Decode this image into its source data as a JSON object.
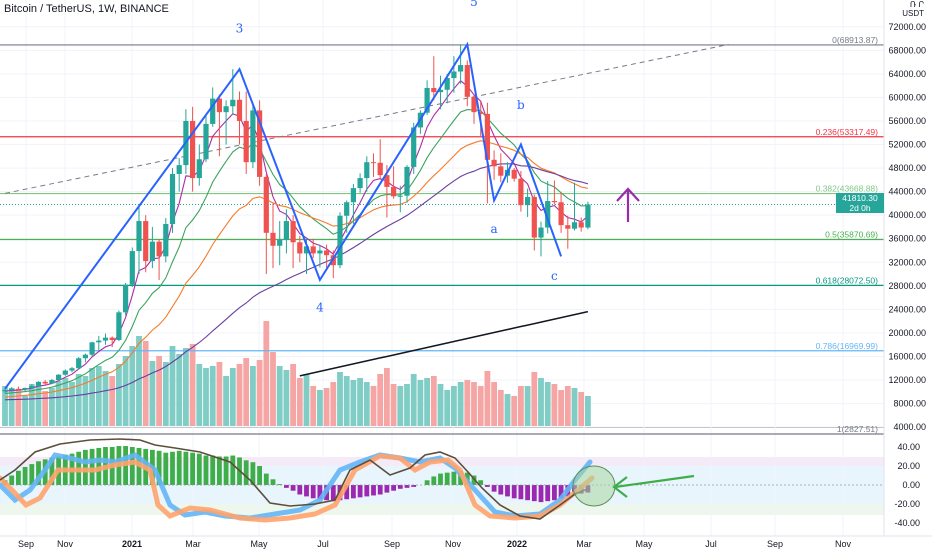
{
  "header": {
    "title": "Bitcoin / TetherUS, 1W, BINANCE"
  },
  "price_axis": {
    "unit_top": "Ռ Ր",
    "unit": "USDT"
  },
  "last_price": {
    "value": "41810.30",
    "countdown": "2d 0h"
  },
  "colors": {
    "bull": "#26a69a",
    "bear": "#ef5350",
    "volume_bull": "#7fcdc5",
    "volume_bear": "#f5a6a4",
    "wave_line": "#2962ff",
    "arrow": "#9c27b0",
    "ma_short": "#b02aa6",
    "ma_mid": "#3da35d",
    "ma_long": "#f57c2b",
    "ma_longer": "#6a3ea1",
    "ma_200": "#131722",
    "fib_0": "#787b86",
    "fib_0236": "#f23645",
    "fib_0382": "#81c784",
    "fib_05": "#4caf50",
    "fib_0618": "#089981",
    "fib_0786": "#64b5f6",
    "fib_1": "#787b86",
    "osc_blue": "#64b5f6",
    "osc_orange": "#ffa36c",
    "osc_line": "#5d4e3c",
    "hist_green": "#3fae4a",
    "hist_purple": "#9c27b0",
    "circle_fill": "#a8d5a0",
    "circle_arrow": "#3fae4a"
  },
  "chart_data": {
    "type": "candlestick",
    "price_axis": {
      "ticks": [
        "72000.00",
        "68000.00",
        "64000.00",
        "60000.00",
        "56000.00",
        "52000.00",
        "48000.00",
        "44000.00",
        "40000.00",
        "36000.00",
        "32000.00",
        "28000.00",
        "24000.00",
        "20000.00",
        "16000.00",
        "12000.00",
        "8000.00",
        "4000.00"
      ],
      "range": [
        3000,
        74000
      ]
    },
    "time_axis": {
      "ticks": [
        "Sep",
        "Nov",
        "2021",
        "Mar",
        "May",
        "Jul",
        "Sep",
        "Nov",
        "2022",
        "Mar",
        "May",
        "Jul",
        "Sep",
        "Nov"
      ],
      "bold": [
        "2021",
        "2022"
      ]
    },
    "fib_levels": [
      {
        "label": "0(68913.87)",
        "price": 68913.87,
        "color_key": "fib_0"
      },
      {
        "label": "0.236(53317.49)",
        "price": 53317.49,
        "color_key": "fib_0236"
      },
      {
        "label": "0.382(43668.88)",
        "price": 43668.88,
        "color_key": "fib_0382"
      },
      {
        "label": "0.5(35870.69)",
        "price": 35870.69,
        "color_key": "fib_05"
      },
      {
        "label": "0.618(28072.50)",
        "price": 28072.5,
        "color_key": "fib_0618"
      },
      {
        "label": "0.786(16969.99)",
        "price": 16969.99,
        "color_key": "fib_0786"
      },
      {
        "label": "1(2827.51)",
        "price": 2827.51,
        "color_key": "fib_1"
      }
    ],
    "wave_labels": [
      {
        "text": "3",
        "week": 35,
        "price": 71000
      },
      {
        "text": "5",
        "week": 70,
        "price": 75500
      },
      {
        "text": "4",
        "week": 47,
        "price": 23600
      },
      {
        "text": "b",
        "week": 77,
        "price": 58000
      },
      {
        "text": "a",
        "week": 73,
        "price": 37000
      },
      {
        "text": "c",
        "week": 82,
        "price": 29000
      }
    ],
    "wave_path": [
      {
        "week": 0,
        "price": 10500
      },
      {
        "week": 35,
        "price": 64800
      },
      {
        "week": 47,
        "price": 29000
      },
      {
        "week": 69,
        "price": 69000
      },
      {
        "week": 73,
        "price": 42500
      },
      {
        "week": 77,
        "price": 52000
      },
      {
        "week": 83,
        "price": 33000
      }
    ],
    "trendline": {
      "from": {
        "week": 0,
        "price": 43700
      },
      "to": {
        "week": 108,
        "price": 69000
      }
    },
    "weeks": [
      {
        "o": 10100,
        "h": 10500,
        "l": 9800,
        "c": 10300,
        "v": 40
      },
      {
        "o": 10300,
        "h": 10800,
        "l": 10000,
        "c": 10500,
        "v": 38
      },
      {
        "o": 10500,
        "h": 10900,
        "l": 10200,
        "c": 10400,
        "v": 36
      },
      {
        "o": 10400,
        "h": 10700,
        "l": 10100,
        "c": 10650,
        "v": 30
      },
      {
        "o": 10650,
        "h": 11300,
        "l": 10500,
        "c": 11000,
        "v": 42
      },
      {
        "o": 11000,
        "h": 11800,
        "l": 10800,
        "c": 11700,
        "v": 40
      },
      {
        "o": 11700,
        "h": 12000,
        "l": 11200,
        "c": 11400,
        "v": 35
      },
      {
        "o": 11400,
        "h": 12200,
        "l": 11300,
        "c": 12000,
        "v": 38
      },
      {
        "o": 12000,
        "h": 13000,
        "l": 11900,
        "c": 12900,
        "v": 45
      },
      {
        "o": 12900,
        "h": 13800,
        "l": 12700,
        "c": 13600,
        "v": 48
      },
      {
        "o": 13600,
        "h": 14200,
        "l": 13300,
        "c": 14000,
        "v": 44
      },
      {
        "o": 14000,
        "h": 15900,
        "l": 13800,
        "c": 15700,
        "v": 52
      },
      {
        "o": 15700,
        "h": 16500,
        "l": 15000,
        "c": 16300,
        "v": 50
      },
      {
        "o": 16300,
        "h": 18500,
        "l": 16000,
        "c": 18400,
        "v": 58
      },
      {
        "o": 18400,
        "h": 19500,
        "l": 17000,
        "c": 18700,
        "v": 60
      },
      {
        "o": 18700,
        "h": 19900,
        "l": 18000,
        "c": 19200,
        "v": 55
      },
      {
        "o": 19200,
        "h": 19400,
        "l": 17600,
        "c": 18800,
        "v": 50
      },
      {
        "o": 18800,
        "h": 23800,
        "l": 18600,
        "c": 23500,
        "v": 62
      },
      {
        "o": 23500,
        "h": 28500,
        "l": 23000,
        "c": 28200,
        "v": 70
      },
      {
        "o": 28200,
        "h": 34500,
        "l": 27800,
        "c": 33900,
        "v": 80
      },
      {
        "o": 33900,
        "h": 41900,
        "l": 30000,
        "c": 39000,
        "v": 90
      },
      {
        "o": 39000,
        "h": 40000,
        "l": 30300,
        "c": 32200,
        "v": 85
      },
      {
        "o": 32200,
        "h": 38000,
        "l": 31000,
        "c": 35500,
        "v": 65
      },
      {
        "o": 35500,
        "h": 35800,
        "l": 29000,
        "c": 33000,
        "v": 70
      },
      {
        "o": 33000,
        "h": 39500,
        "l": 32000,
        "c": 38500,
        "v": 64
      },
      {
        "o": 38500,
        "h": 48000,
        "l": 37000,
        "c": 47000,
        "v": 80
      },
      {
        "o": 47000,
        "h": 49700,
        "l": 44000,
        "c": 48500,
        "v": 72
      },
      {
        "o": 48500,
        "h": 58000,
        "l": 47000,
        "c": 56000,
        "v": 78
      },
      {
        "o": 56000,
        "h": 58400,
        "l": 44000,
        "c": 46300,
        "v": 82
      },
      {
        "o": 46300,
        "h": 52000,
        "l": 45000,
        "c": 49500,
        "v": 62
      },
      {
        "o": 49500,
        "h": 57000,
        "l": 49000,
        "c": 55500,
        "v": 58
      },
      {
        "o": 55500,
        "h": 61700,
        "l": 55000,
        "c": 59800,
        "v": 60
      },
      {
        "o": 59800,
        "h": 60500,
        "l": 50000,
        "c": 57500,
        "v": 64
      },
      {
        "o": 57500,
        "h": 59500,
        "l": 52000,
        "c": 58500,
        "v": 50
      },
      {
        "o": 58500,
        "h": 64800,
        "l": 57000,
        "c": 59600,
        "v": 58
      },
      {
        "o": 59600,
        "h": 61000,
        "l": 52000,
        "c": 56000,
        "v": 62
      },
      {
        "o": 56000,
        "h": 61000,
        "l": 47000,
        "c": 49000,
        "v": 68
      },
      {
        "o": 49000,
        "h": 58900,
        "l": 48000,
        "c": 57800,
        "v": 60
      },
      {
        "o": 57800,
        "h": 59500,
        "l": 45000,
        "c": 46500,
        "v": 66
      },
      {
        "o": 46500,
        "h": 47000,
        "l": 30000,
        "c": 37000,
        "v": 105
      },
      {
        "o": 37000,
        "h": 42000,
        "l": 31000,
        "c": 34800,
        "v": 74
      },
      {
        "o": 34800,
        "h": 39000,
        "l": 31500,
        "c": 35800,
        "v": 60
      },
      {
        "o": 35800,
        "h": 41000,
        "l": 33500,
        "c": 39000,
        "v": 56
      },
      {
        "o": 39000,
        "h": 40000,
        "l": 31000,
        "c": 35400,
        "v": 62
      },
      {
        "o": 35400,
        "h": 36500,
        "l": 32000,
        "c": 33500,
        "v": 48
      },
      {
        "o": 33500,
        "h": 36000,
        "l": 30000,
        "c": 34700,
        "v": 52
      },
      {
        "o": 34700,
        "h": 36000,
        "l": 32700,
        "c": 33500,
        "v": 40
      },
      {
        "o": 33500,
        "h": 35000,
        "l": 31100,
        "c": 34000,
        "v": 36
      },
      {
        "o": 34000,
        "h": 35000,
        "l": 31000,
        "c": 33200,
        "v": 38
      },
      {
        "o": 33200,
        "h": 34000,
        "l": 29300,
        "c": 31500,
        "v": 44
      },
      {
        "o": 31500,
        "h": 40500,
        "l": 31000,
        "c": 39900,
        "v": 54
      },
      {
        "o": 39900,
        "h": 42500,
        "l": 37000,
        "c": 42200,
        "v": 50
      },
      {
        "o": 42200,
        "h": 45300,
        "l": 38500,
        "c": 44600,
        "v": 46
      },
      {
        "o": 44600,
        "h": 47100,
        "l": 43800,
        "c": 46300,
        "v": 48
      },
      {
        "o": 46300,
        "h": 50000,
        "l": 44000,
        "c": 49000,
        "v": 44
      },
      {
        "o": 49000,
        "h": 50500,
        "l": 46500,
        "c": 48900,
        "v": 40
      },
      {
        "o": 48900,
        "h": 52900,
        "l": 46000,
        "c": 46800,
        "v": 52
      },
      {
        "o": 46800,
        "h": 48500,
        "l": 39600,
        "c": 44800,
        "v": 58
      },
      {
        "o": 44800,
        "h": 48300,
        "l": 42800,
        "c": 43200,
        "v": 42
      },
      {
        "o": 43200,
        "h": 45000,
        "l": 40500,
        "c": 43300,
        "v": 40
      },
      {
        "o": 43300,
        "h": 48500,
        "l": 42100,
        "c": 48200,
        "v": 42
      },
      {
        "o": 48200,
        "h": 55700,
        "l": 47000,
        "c": 54900,
        "v": 52
      },
      {
        "o": 54900,
        "h": 57800,
        "l": 53800,
        "c": 57400,
        "v": 46
      },
      {
        "o": 57400,
        "h": 62900,
        "l": 57000,
        "c": 61600,
        "v": 48
      },
      {
        "o": 61600,
        "h": 67000,
        "l": 59500,
        "c": 60900,
        "v": 50
      },
      {
        "o": 60900,
        "h": 63700,
        "l": 58000,
        "c": 61300,
        "v": 42
      },
      {
        "o": 61300,
        "h": 64000,
        "l": 59000,
        "c": 63300,
        "v": 36
      },
      {
        "o": 63300,
        "h": 67000,
        "l": 60800,
        "c": 64400,
        "v": 40
      },
      {
        "o": 64400,
        "h": 69000,
        "l": 62300,
        "c": 65500,
        "v": 44
      },
      {
        "o": 65500,
        "h": 66300,
        "l": 58500,
        "c": 60100,
        "v": 46
      },
      {
        "o": 60100,
        "h": 60500,
        "l": 55500,
        "c": 57500,
        "v": 44
      },
      {
        "o": 57500,
        "h": 59200,
        "l": 53200,
        "c": 57200,
        "v": 40
      },
      {
        "o": 57200,
        "h": 59100,
        "l": 42000,
        "c": 49400,
        "v": 55
      },
      {
        "o": 49400,
        "h": 51000,
        "l": 46000,
        "c": 48300,
        "v": 44
      },
      {
        "o": 48300,
        "h": 50500,
        "l": 45600,
        "c": 46700,
        "v": 36
      },
      {
        "o": 46700,
        "h": 49000,
        "l": 45500,
        "c": 47700,
        "v": 32
      },
      {
        "o": 47700,
        "h": 48000,
        "l": 45700,
        "c": 46200,
        "v": 30
      },
      {
        "o": 46200,
        "h": 47500,
        "l": 40600,
        "c": 41700,
        "v": 40
      },
      {
        "o": 41700,
        "h": 44500,
        "l": 39700,
        "c": 43100,
        "v": 40
      },
      {
        "o": 43100,
        "h": 43500,
        "l": 34000,
        "c": 36200,
        "v": 54
      },
      {
        "o": 36200,
        "h": 38900,
        "l": 33000,
        "c": 37900,
        "v": 48
      },
      {
        "o": 37900,
        "h": 45800,
        "l": 36900,
        "c": 42400,
        "v": 44
      },
      {
        "o": 42400,
        "h": 45900,
        "l": 41800,
        "c": 42200,
        "v": 42
      },
      {
        "o": 42200,
        "h": 43900,
        "l": 37000,
        "c": 38300,
        "v": 36
      },
      {
        "o": 38300,
        "h": 39900,
        "l": 34300,
        "c": 37700,
        "v": 40
      },
      {
        "o": 37700,
        "h": 45500,
        "l": 37400,
        "c": 38800,
        "v": 38
      },
      {
        "o": 38800,
        "h": 39600,
        "l": 37200,
        "c": 37900,
        "v": 34
      },
      {
        "o": 37900,
        "h": 42300,
        "l": 37600,
        "c": 41810.3,
        "v": 30
      }
    ]
  }
}
